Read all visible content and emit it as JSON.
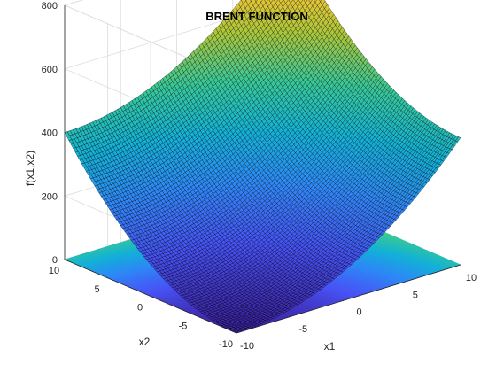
{
  "chart_data": {
    "type": "surface3d",
    "title": "BRENT FUNCTION",
    "xlabel": "x1",
    "ylabel": "x2",
    "zlabel": "f(x1,x2)",
    "function": "(x1+10)^2 + (x2+10)^2 + exp(-x1^2 - x2^2)",
    "x1_range": [
      -10,
      10
    ],
    "x2_range": [
      -10,
      10
    ],
    "zlim": [
      0,
      800
    ],
    "x1_ticks": [
      -10,
      -5,
      0,
      5,
      10
    ],
    "x2_ticks": [
      -10,
      -5,
      0,
      5,
      10
    ],
    "z_ticks": [
      0,
      200,
      400,
      600,
      800
    ],
    "x1_tick_labels": [
      "-10",
      "-5",
      "0",
      "5",
      "10"
    ],
    "x2_tick_labels": [
      "-10",
      "-5",
      "0",
      "5",
      "10"
    ],
    "z_tick_labels": [
      "0",
      "200",
      "400",
      "600",
      "800"
    ],
    "contour_at_floor": true,
    "grid": true,
    "colormap": "parula",
    "mesh_color": "#000000"
  }
}
